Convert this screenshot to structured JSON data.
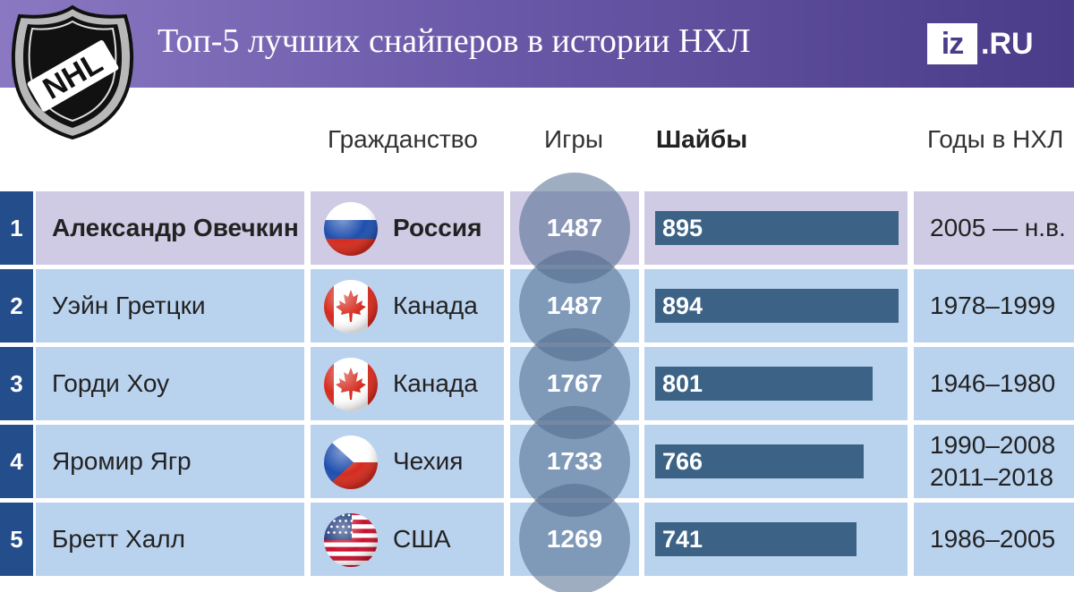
{
  "title": "Топ-5 лучших снайперов в истории НХЛ",
  "brand": {
    "box": "iz",
    "rest": ".RU"
  },
  "logo_text": "NHL",
  "columns": {
    "citizenship": "Гражданство",
    "games": "Игры",
    "goals": "Шайбы",
    "years": "Годы в НХЛ"
  },
  "colors": {
    "header": "#6a59a8",
    "row_highlight": "#cfcbe4",
    "row_default": "#b9d2ee",
    "rank_bg": "#244d8c",
    "bar": "#3c6386"
  },
  "rows": [
    {
      "rank": "1",
      "name": "Александр Овечкин",
      "country": "Россия",
      "flag": "russia-flag-icon",
      "games": "1487",
      "goals": "895",
      "years": [
        "2005 — н.в."
      ],
      "highlight": true
    },
    {
      "rank": "2",
      "name": "Уэйн Гретцки",
      "country": "Канада",
      "flag": "canada-flag-icon",
      "games": "1487",
      "goals": "894",
      "years": [
        "1978–1999"
      ],
      "highlight": false
    },
    {
      "rank": "3",
      "name": "Горди Хоу",
      "country": "Канада",
      "flag": "canada-flag-icon",
      "games": "1767",
      "goals": "801",
      "years": [
        "1946–1980"
      ],
      "highlight": false
    },
    {
      "rank": "4",
      "name": "Яромир Ягр",
      "country": "Чехия",
      "flag": "czech-flag-icon",
      "games": "1733",
      "goals": "766",
      "years": [
        "1990–2008",
        "2011–2018"
      ],
      "highlight": false
    },
    {
      "rank": "5",
      "name": "Бретт Халл",
      "country": "США",
      "flag": "usa-flag-icon",
      "games": "1269",
      "goals": "741",
      "years": [
        "1986–2005"
      ],
      "highlight": false
    }
  ],
  "chart_data": {
    "type": "table",
    "categories": [
      "Александр Овечкин",
      "Уэйн Гретцки",
      "Горди Хоу",
      "Яромир Ягр",
      "Бретт Халл"
    ],
    "series": [
      {
        "name": "Шайбы",
        "values": [
          895,
          894,
          801,
          766,
          741
        ]
      },
      {
        "name": "Игры",
        "values": [
          1487,
          1487,
          1767,
          1733,
          1269
        ]
      }
    ],
    "title": "Топ-5 лучших снайперов в истории НХЛ"
  }
}
